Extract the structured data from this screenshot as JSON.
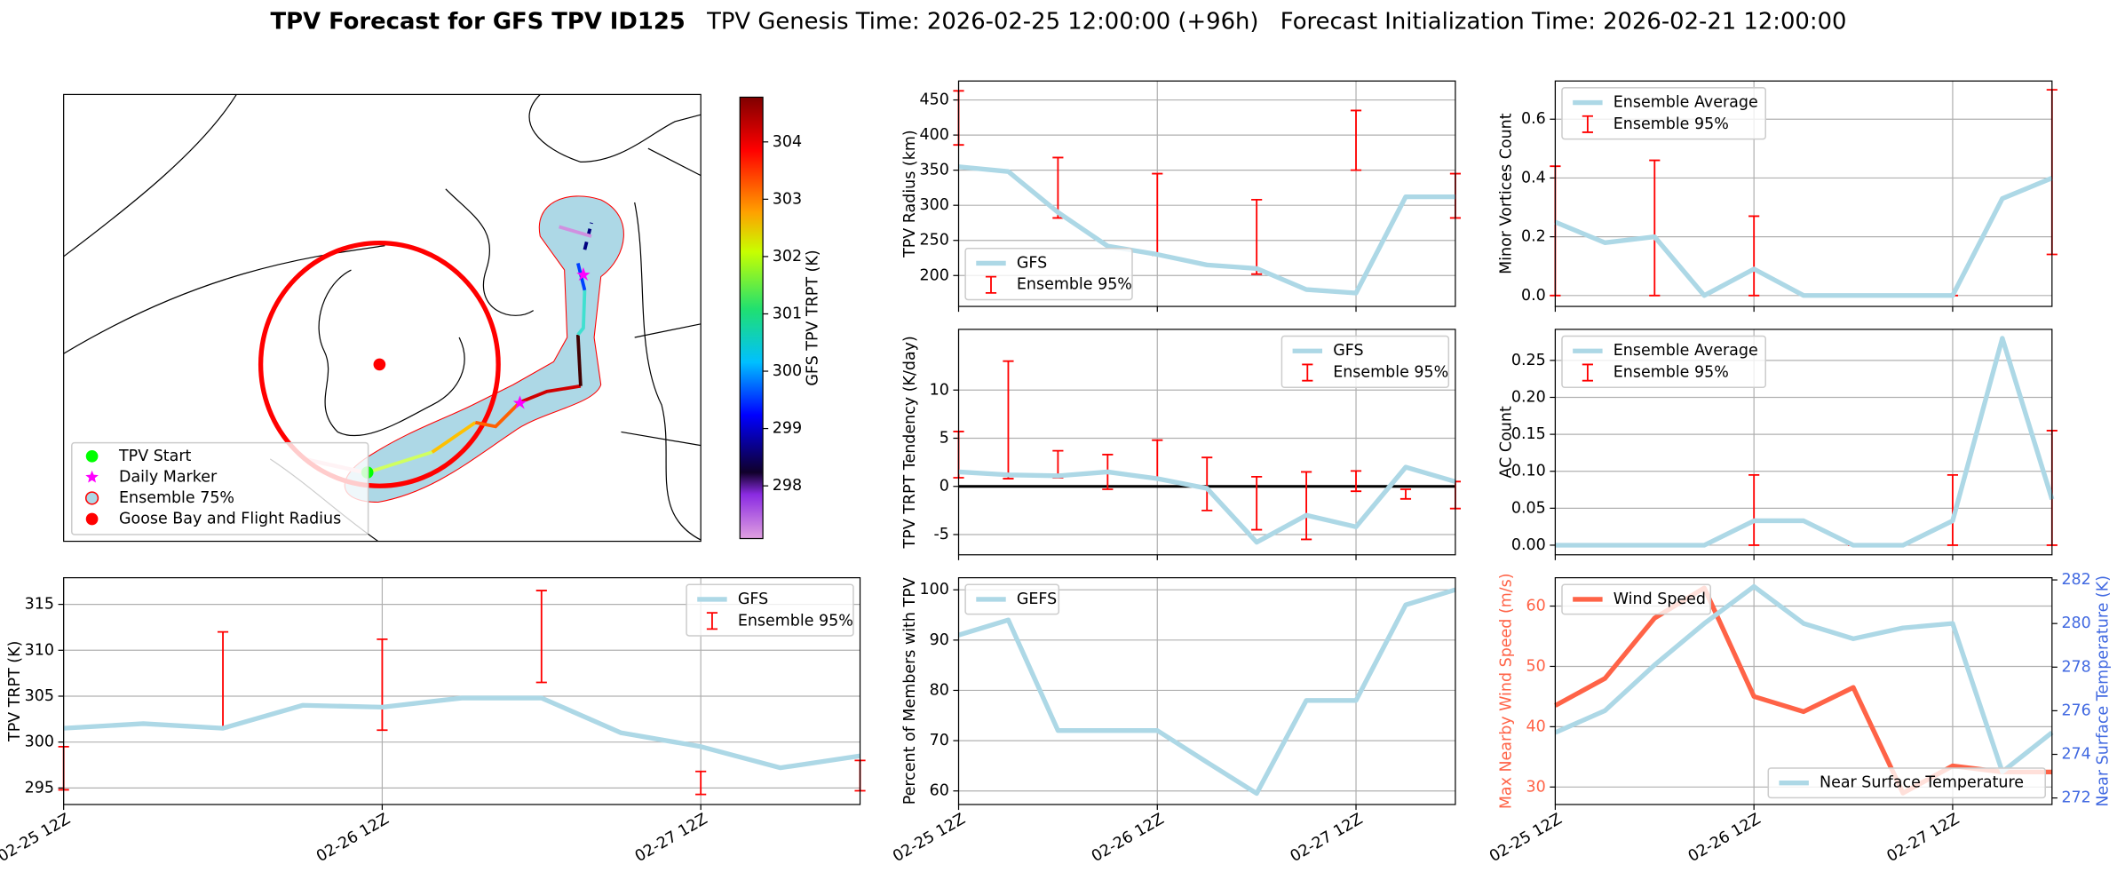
{
  "title": {
    "main": "TPV Forecast for GFS TPV ID125",
    "genesis": "TPV Genesis Time: 2026-02-25 12:00:00 (+96h)",
    "init": "Forecast Initialization Time: 2026-02-21 12:00:00"
  },
  "time_axis": [
    "02-25 12Z",
    null,
    null,
    null,
    "02-26 12Z",
    null,
    null,
    null,
    "02-27 12Z",
    null,
    null
  ],
  "chart_data": [
    {
      "type": "map",
      "legend_loc": "lower left",
      "legend": [
        {
          "label": "TPV Start",
          "color": "#00ff00",
          "marker": "circle"
        },
        {
          "label": "Daily Marker",
          "color": "#ff00ff",
          "marker": "star"
        },
        {
          "label": "Ensemble 75%",
          "color": "#add8e6",
          "edge": "#ff0000",
          "marker": "circle"
        },
        {
          "label": "Goose Bay and Flight Radius",
          "color": "#ff0000",
          "marker": "circle"
        }
      ],
      "colorbar": {
        "label": "GFS TPV TRPT (K)",
        "lim": [
          297.08,
          304.78
        ],
        "ticks": [
          298,
          299,
          300,
          301,
          302,
          303,
          304
        ]
      }
    },
    {
      "type": "line",
      "ylabel": "TPV Radius (km)",
      "ylim": [
        156,
        477
      ],
      "yticks": [
        200,
        250,
        300,
        350,
        400,
        450
      ],
      "grid": true,
      "legend": "lower left",
      "series": [
        {
          "name": "GFS",
          "color": "#add8e6",
          "values": [
            355,
            348,
            290,
            242,
            230,
            215,
            210,
            180,
            175,
            312,
            312
          ]
        }
      ],
      "errorbars": {
        "name": "Ensemble 95%",
        "color": "#ff0000",
        "low": [
          386,
          null,
          282,
          null,
          229,
          null,
          202,
          null,
          350,
          null,
          282
        ],
        "high": [
          463,
          null,
          368,
          null,
          345,
          null,
          308,
          null,
          435,
          null,
          345
        ]
      }
    },
    {
      "type": "line",
      "ylabel": "Minor Vortices Count",
      "ylim": [
        -0.037,
        0.73
      ],
      "yticks": [
        {
          "value": 0,
          "label": "0.0"
        },
        0.2,
        0.4,
        0.6
      ],
      "grid": true,
      "legend": "upper left",
      "series": [
        {
          "name": "Ensemble Average",
          "color": "#add8e6",
          "values": [
            0.25,
            0.18,
            0.2,
            0,
            0.09,
            0,
            0,
            0,
            0,
            0.33,
            0.4
          ]
        }
      ],
      "errorbars": {
        "name": "Ensemble 95%",
        "color": "#ff0000",
        "low": [
          0,
          null,
          0,
          null,
          0,
          null,
          0,
          null,
          0,
          null,
          0.14
        ],
        "high": [
          0.44,
          null,
          0.46,
          null,
          0.27,
          null,
          0,
          null,
          0,
          null,
          0.7
        ]
      }
    },
    {
      "type": "line",
      "ylabel": "TPV TRPT Tendency (K/day)",
      "ylim": [
        -7.1,
        16.3
      ],
      "yticks": [
        -5,
        0,
        5,
        10
      ],
      "grid": true,
      "legend": "upper right",
      "hline": 0,
      "series": [
        {
          "name": "GFS",
          "color": "#add8e6",
          "values": [
            1.5,
            1.2,
            1.1,
            1.5,
            0.8,
            -0.2,
            -5.8,
            -3,
            -4.2,
            2,
            0.5
          ]
        }
      ],
      "errorbars": {
        "name": "Ensemble 95%",
        "color": "#ff0000",
        "low": [
          0.9,
          0.8,
          0.9,
          -0.3,
          0.8,
          -2.5,
          -4.5,
          -5.5,
          -0.5,
          -1.3,
          -2.3
        ],
        "high": [
          5.7,
          13,
          3.7,
          3.3,
          4.8,
          3,
          1,
          1.5,
          1.6,
          -0.3,
          0.5
        ]
      }
    },
    {
      "type": "line",
      "ylabel": "AC Count",
      "ylim": [
        -0.013,
        0.292
      ],
      "yticks": [
        {
          "value": 0,
          "label": "0.00"
        },
        0.05,
        {
          "value": 0.1,
          "label": "0.10"
        },
        0.15,
        {
          "value": 0.2,
          "label": "0.20"
        },
        0.25
      ],
      "grid": true,
      "legend": "upper left",
      "series": [
        {
          "name": "Ensemble Average",
          "color": "#add8e6",
          "values": [
            0,
            0,
            0,
            0,
            0.033,
            0.033,
            0,
            0,
            0.033,
            0.28,
            0.062
          ]
        }
      ],
      "errorbars": {
        "name": "Ensemble 95%",
        "color": "#ff0000",
        "low": [
          null,
          null,
          0,
          null,
          0,
          null,
          0,
          null,
          0,
          null,
          0
        ],
        "high": [
          null,
          null,
          0,
          null,
          0.095,
          null,
          0,
          null,
          0.095,
          null,
          0.155
        ]
      }
    },
    {
      "type": "line",
      "ylabel": "TPV TRPT (K)",
      "ylim": [
        293.2,
        317.9
      ],
      "yticks": [
        295,
        300,
        305,
        310,
        315
      ],
      "grid": true,
      "legend": "upper right",
      "series": [
        {
          "name": "GFS",
          "color": "#add8e6",
          "values": [
            301.5,
            302,
            301.5,
            304,
            303.8,
            304.8,
            304.8,
            301,
            299.5,
            297.2,
            298.5
          ]
        }
      ],
      "errorbars": {
        "name": "Ensemble 95%",
        "color": "#ff0000",
        "low": [
          294.8,
          null,
          301.5,
          null,
          301.3,
          null,
          306.5,
          null,
          294.3,
          null,
          294.7
        ],
        "high": [
          299.5,
          null,
          312,
          null,
          311.2,
          null,
          316.5,
          null,
          296.8,
          null,
          298
        ]
      }
    },
    {
      "type": "line",
      "ylabel": "Percent of Members with TPV",
      "ylim": [
        57.3,
        102.4
      ],
      "yticks": [
        60,
        70,
        80,
        90,
        100
      ],
      "grid": true,
      "legend": "upper left",
      "series": [
        {
          "name": "GEFS",
          "color": "#add8e6",
          "values": [
            91,
            94,
            72,
            72,
            72,
            65.7,
            59.5,
            78,
            78,
            97,
            100
          ]
        }
      ]
    },
    {
      "type": "line",
      "ylabel": "Max Nearby Wind Speed (m/s)",
      "ylabel_color": "#ff6347",
      "y2label": "Near Surface Temperature (K)",
      "y2label_color": "#4169e1",
      "ylim": [
        27.1,
        64.7
      ],
      "yticks": [
        30,
        40,
        50,
        60
      ],
      "y2lim": [
        271.7,
        282.1
      ],
      "y2ticks": [
        272,
        274,
        276,
        278,
        280,
        282
      ],
      "grid": true,
      "legend": "upper left",
      "legend2": "lower right",
      "series": [
        {
          "name": "Wind Speed",
          "color": "#ff6347",
          "values": [
            43.5,
            48,
            58,
            63,
            45,
            42.5,
            46.5,
            29,
            33.5,
            32.5,
            32.5
          ]
        },
        {
          "name": "Near Surface Temperature",
          "color": "#add8e6",
          "axis": "y2",
          "values": [
            275,
            276,
            278.1,
            280,
            281.7,
            280,
            279.3,
            279.8,
            280,
            273.2,
            275
          ]
        }
      ]
    }
  ]
}
